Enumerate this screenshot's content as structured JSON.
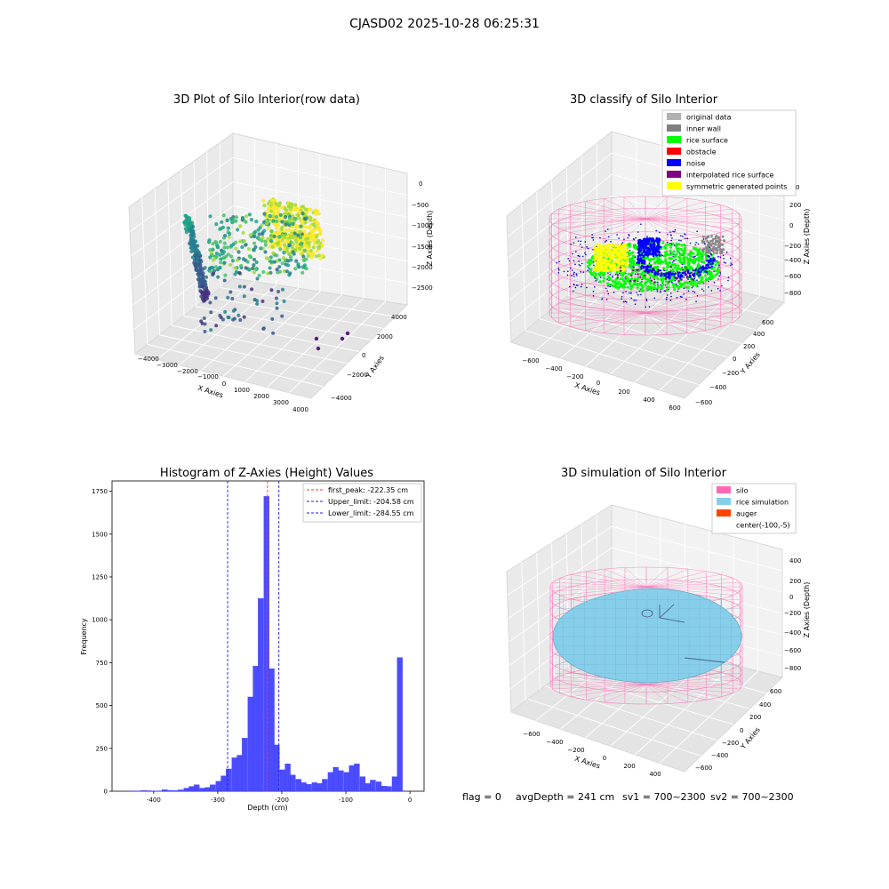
{
  "suptitle": "CJASD02 2025-10-28 06:25:31",
  "status": {
    "flag": "flag = 0",
    "avg_depth": "avgDepth = 241 cm",
    "sv1": "sv1 = 700~2300",
    "sv2": "sv2 = 700~2300"
  },
  "colors": {
    "hist_fill": "#4c4cff",
    "hist_edge": "#3a3af0",
    "first_peak_line": "#ff3333",
    "limit_lines": "#1a1aff",
    "silo": "#ff69b4",
    "rice": "#87ceeb",
    "auger": "#ff4500"
  },
  "chart_data": [
    {
      "type": "scatter3d",
      "title": "3D Plot of Silo Interior(row data)",
      "xlabel": "X Axies",
      "ylabel": "Y Axies",
      "zlabel": "Z Axies (Depth)",
      "xticks": [
        "−4000",
        "−3000",
        "−2000",
        "−1000",
        "0",
        "1000",
        "2000",
        "3000",
        "4000"
      ],
      "yticks": [
        "−4000",
        "−2000",
        "0",
        "2000",
        "4000"
      ],
      "zticks": [
        "0",
        "−500",
        "−1000",
        "−1500",
        "−2000",
        "−2500"
      ],
      "colormap": "viridis",
      "description_of_data": "raw point cloud, depth from about 0 to about -3000"
    },
    {
      "type": "scatter3d",
      "title": "3D classify of Silo Interior",
      "xlabel": "X Axies",
      "ylabel": "Y Axies",
      "zlabel": "Z Axies (Depth)",
      "xticks": [
        "−600",
        "−400",
        "−200",
        "0",
        "200",
        "400",
        "600"
      ],
      "yticks": [
        "−600",
        "−400",
        "−200",
        "0",
        "200",
        "400",
        "600"
      ],
      "zticks": [
        "200",
        "0",
        "−200",
        "−400",
        "−600",
        "−800"
      ],
      "legend_position": "top-right",
      "legend": [
        {
          "label": "original data",
          "color": "#b0b0b0"
        },
        {
          "label": "inner wall",
          "color": "#808080"
        },
        {
          "label": "rice surface",
          "color": "#00ff00"
        },
        {
          "label": "obstacle",
          "color": "#ff0000"
        },
        {
          "label": "noise",
          "color": "#0000ff"
        },
        {
          "label": "interpolated rice surface",
          "color": "#800080"
        },
        {
          "label": "symmetric generated points",
          "color": "#ffff00"
        }
      ],
      "ztick_top_partial": "0"
    },
    {
      "type": "bar",
      "title": "Histogram of Z-Axies (Height) Values",
      "xlabel": "Depth (cm)",
      "ylabel": "Frequency",
      "xlim": [
        -465,
        22
      ],
      "ylim": [
        0,
        1810
      ],
      "xticks": [
        -400,
        -300,
        -200,
        -100,
        0
      ],
      "yticks": [
        0,
        250,
        500,
        750,
        1000,
        1250,
        1500,
        1750
      ],
      "bin_width": 8.3,
      "bins": [
        [
          -437,
          2
        ],
        [
          -428,
          1
        ],
        [
          -420,
          4
        ],
        [
          -412,
          3
        ],
        [
          -403,
          1
        ],
        [
          -395,
          2
        ],
        [
          -387,
          9
        ],
        [
          -378,
          5
        ],
        [
          -370,
          4
        ],
        [
          -362,
          8
        ],
        [
          -353,
          18
        ],
        [
          -345,
          28
        ],
        [
          -337,
          38
        ],
        [
          -328,
          18
        ],
        [
          -320,
          22
        ],
        [
          -312,
          38
        ],
        [
          -303,
          58
        ],
        [
          -295,
          90
        ],
        [
          -287,
          130
        ],
        [
          -278,
          195
        ],
        [
          -270,
          210
        ],
        [
          -262,
          310
        ],
        [
          -253,
          550
        ],
        [
          -245,
          730
        ],
        [
          -237,
          1125
        ],
        [
          -228,
          1720
        ],
        [
          -220,
          715
        ],
        [
          -212,
          270
        ],
        [
          -203,
          125
        ],
        [
          -195,
          160
        ],
        [
          -187,
          95
        ],
        [
          -178,
          70
        ],
        [
          -170,
          50
        ],
        [
          -162,
          40
        ],
        [
          -153,
          50
        ],
        [
          -145,
          45
        ],
        [
          -137,
          70
        ],
        [
          -128,
          110
        ],
        [
          -120,
          140
        ],
        [
          -112,
          120
        ],
        [
          -103,
          110
        ],
        [
          -95,
          150
        ],
        [
          -87,
          160
        ],
        [
          -78,
          85
        ],
        [
          -70,
          45
        ],
        [
          -62,
          65
        ],
        [
          -53,
          55
        ],
        [
          -45,
          30
        ],
        [
          -37,
          28
        ],
        [
          -28,
          85
        ],
        [
          -20,
          780
        ]
      ],
      "vlines": [
        {
          "x": -222.35,
          "label": "first_peak: -222.35 cm",
          "role": "first_peak"
        },
        {
          "x": -204.58,
          "label": "Upper_limit: -204.58 cm",
          "role": "limit"
        },
        {
          "x": -284.55,
          "label": "Lower_limit: -284.55 cm",
          "role": "limit"
        }
      ],
      "legend_position": "top-right",
      "grid": false
    },
    {
      "type": "surface3d",
      "title": "3D simulation of Silo Interior",
      "xlabel": "X Axies",
      "ylabel": "Y Axies",
      "zlabel": "Z Axies (Depth)",
      "xticks": [
        "−600",
        "−400",
        "−200",
        "0",
        "200",
        "400"
      ],
      "yticks": [
        "−600",
        "−400",
        "−200",
        "0",
        "200",
        "400",
        "600"
      ],
      "zticks": [
        "400",
        "200",
        "0",
        "−200",
        "−400",
        "−600",
        "−800"
      ],
      "legend_position": "top-right",
      "legend": [
        {
          "label": "silo",
          "color": "#ff69b4"
        },
        {
          "label": "rice simulation",
          "color": "#87ceeb"
        },
        {
          "label": "auger",
          "color": "#ff4500"
        },
        {
          "label": "center(-100,-5)",
          "color": ""
        }
      ]
    }
  ]
}
